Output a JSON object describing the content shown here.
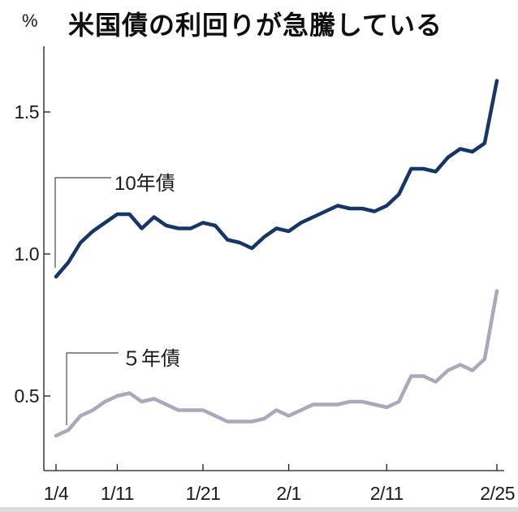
{
  "header": {
    "unit_label": "%",
    "title": "米国債の利回りが急騰している"
  },
  "chart_data": {
    "type": "line",
    "title": "米国債の利回りが急騰している",
    "xlabel": "",
    "ylabel": "%",
    "ylim": [
      0.24,
      1.73
    ],
    "yticks": [
      0.5,
      1.0,
      1.5
    ],
    "ytick_labels": [
      "0.5",
      "1.0",
      "1.5"
    ],
    "grid": false,
    "legend_position": "inline-callout-labels",
    "x": [
      "1/4",
      "1/5",
      "1/6",
      "1/7",
      "1/8",
      "1/11",
      "1/12",
      "1/13",
      "1/14",
      "1/15",
      "1/19",
      "1/20",
      "1/21",
      "1/22",
      "1/25",
      "1/26",
      "1/27",
      "1/28",
      "1/29",
      "2/1",
      "2/2",
      "2/3",
      "2/4",
      "2/5",
      "2/8",
      "2/9",
      "2/10",
      "2/11",
      "2/12",
      "2/16",
      "2/17",
      "2/18",
      "2/19",
      "2/22",
      "2/23",
      "2/24",
      "2/25"
    ],
    "xtick_labels": [
      "1/4",
      "1/11",
      "1/21",
      "2/1",
      "2/11",
      "2/25"
    ],
    "xtick_indices": [
      0,
      5,
      12,
      19,
      27,
      36
    ],
    "series": [
      {
        "name": "10年債",
        "color": "#163668",
        "values": [
          0.92,
          0.97,
          1.04,
          1.08,
          1.11,
          1.14,
          1.14,
          1.09,
          1.13,
          1.1,
          1.09,
          1.09,
          1.11,
          1.1,
          1.05,
          1.04,
          1.02,
          1.06,
          1.09,
          1.08,
          1.11,
          1.13,
          1.15,
          1.17,
          1.16,
          1.16,
          1.15,
          1.17,
          1.21,
          1.3,
          1.3,
          1.29,
          1.34,
          1.37,
          1.36,
          1.39,
          1.61
        ]
      },
      {
        "name": "５年債",
        "color": "#a8a9ba",
        "values": [
          0.36,
          0.38,
          0.43,
          0.45,
          0.48,
          0.5,
          0.51,
          0.48,
          0.49,
          0.47,
          0.45,
          0.45,
          0.45,
          0.43,
          0.41,
          0.41,
          0.41,
          0.42,
          0.45,
          0.43,
          0.45,
          0.47,
          0.47,
          0.47,
          0.48,
          0.48,
          0.47,
          0.46,
          0.48,
          0.57,
          0.57,
          0.55,
          0.59,
          0.61,
          0.59,
          0.63,
          0.87
        ]
      }
    ]
  },
  "colors": {
    "axis": "#1a1a1a",
    "tick_text": "#1a1a1a",
    "background": "#ffffff",
    "bottom_band": "#dbdbdb",
    "callout_line": "#4a4a4a"
  }
}
